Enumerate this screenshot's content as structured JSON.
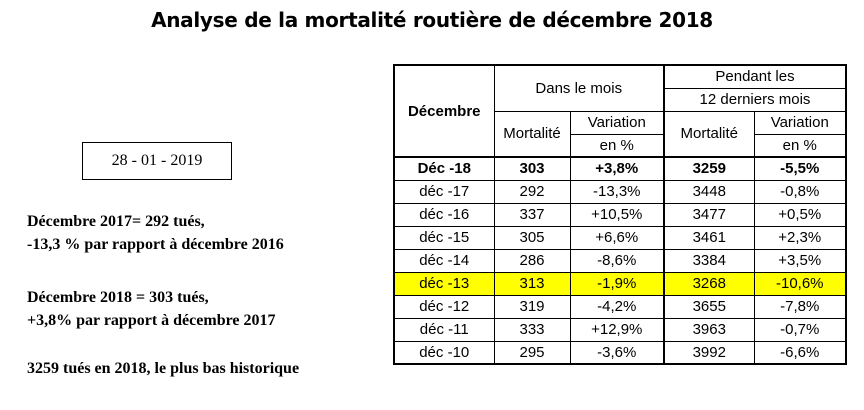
{
  "title": "Analyse de la mortalité routière de décembre 2018",
  "date": "28 - 01 - 2019",
  "notes": [
    {
      "line1": "Décembre 2017= 292 tués,",
      "line2": "-13,3 % par rapport à décembre 2016"
    },
    {
      "line1": "Décembre 2018 = 303 tués,",
      "line2": "+3,8% par rapport à décembre 2017"
    },
    {
      "line1": "3259 tués en 2018, le plus bas historique"
    }
  ],
  "table": {
    "header_month": "Décembre",
    "group_month": "Dans le mois",
    "group_12_line1": "Pendant les",
    "group_12_line2": "12 derniers mois",
    "col_mortalite": "Mortalité",
    "col_variation_line1": "Variation",
    "col_variation_line2": "en %",
    "rows": [
      {
        "label": "Déc -18",
        "m": "303",
        "v": "+3,8%",
        "m12": "3259",
        "v12": "-5,5%",
        "bold": true
      },
      {
        "label": "déc -17",
        "m": "292",
        "v": "-13,3%",
        "m12": "3448",
        "v12": "-0,8%"
      },
      {
        "label": "déc -16",
        "m": "337",
        "v": "+10,5%",
        "m12": "3477",
        "v12": "+0,5%"
      },
      {
        "label": "déc -15",
        "m": "305",
        "v": "+6,6%",
        "m12": "3461",
        "v12": "+2,3%"
      },
      {
        "label": "déc -14",
        "m": "286",
        "v": "-8,6%",
        "m12": "3384",
        "v12": "+3,5%"
      },
      {
        "label": "déc -13",
        "m": "313",
        "v": "-1,9%",
        "m12": "3268",
        "v12": "-10,6%",
        "highlight": true
      },
      {
        "label": "déc -12",
        "m": "319",
        "v": "-4,2%",
        "m12": "3655",
        "v12": "-7,8%"
      },
      {
        "label": "déc -11",
        "m": "333",
        "v": "+12,9%",
        "m12": "3963",
        "v12": "-0,7%"
      },
      {
        "label": "déc -10",
        "m": "295",
        "v": "-3,6%",
        "m12": "3992",
        "v12": "-6,6%"
      }
    ],
    "highlight_color": "#ffff00"
  }
}
